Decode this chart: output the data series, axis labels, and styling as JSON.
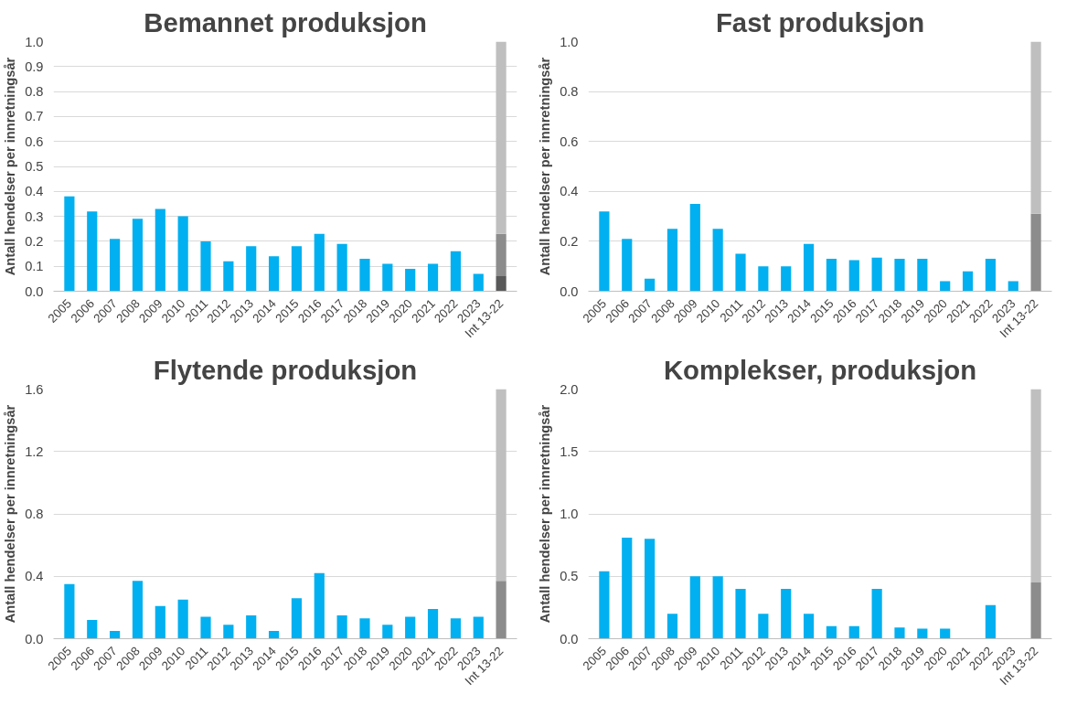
{
  "chart_data": [
    {
      "type": "bar",
      "title": "Bemannet produksjon",
      "ylabel": "Antall hendelser per innretningsår",
      "stacked": true,
      "grid": "y",
      "categories": [
        "2005",
        "2006",
        "2007",
        "2008",
        "2009",
        "2010",
        "2011",
        "2012",
        "2013",
        "2014",
        "2015",
        "2016",
        "2017",
        "2018",
        "2019",
        "2020",
        "2021",
        "2022",
        "2023",
        "Int 13-22"
      ],
      "ylim": [
        0,
        1.0
      ],
      "yticks": [
        {
          "value": 0,
          "label": "0.0"
        },
        0.1,
        0.2,
        0.3,
        0.4,
        0.5,
        0.6,
        0.7,
        0.8,
        0.9,
        {
          "value": 1,
          "label": "1.0"
        }
      ],
      "series": [
        {
          "color": "#00b0f0",
          "values": [
            0.38,
            0.32,
            0.21,
            0.29,
            0.33,
            0.3,
            0.2,
            0.12,
            0.18,
            0.14,
            0.18,
            0.23,
            0.19,
            0.13,
            0.11,
            0.09,
            0.11,
            0.16,
            0.07,
            null
          ]
        },
        {
          "color": "#595959",
          "values": [
            null,
            null,
            null,
            null,
            null,
            null,
            null,
            null,
            null,
            null,
            null,
            null,
            null,
            null,
            null,
            null,
            null,
            null,
            null,
            0.06
          ]
        },
        {
          "color": "#8c8c8c",
          "values": [
            null,
            null,
            null,
            null,
            null,
            null,
            null,
            null,
            null,
            null,
            null,
            null,
            null,
            null,
            null,
            null,
            null,
            null,
            null,
            0.17
          ]
        },
        {
          "color": "#bfbfbf",
          "values": [
            null,
            null,
            null,
            null,
            null,
            null,
            null,
            null,
            null,
            null,
            null,
            null,
            null,
            null,
            null,
            null,
            null,
            null,
            null,
            0.77
          ]
        }
      ]
    },
    {
      "type": "bar",
      "title": "Fast produksjon",
      "ylabel": "Antall hendelser per innretningsår",
      "stacked": true,
      "grid": "y",
      "categories": [
        "2005",
        "2006",
        "2007",
        "2008",
        "2009",
        "2010",
        "2011",
        "2012",
        "2013",
        "2014",
        "2015",
        "2016",
        "2017",
        "2018",
        "2019",
        "2020",
        "2021",
        "2022",
        "2023",
        "Int 13-22"
      ],
      "ylim": [
        0,
        1.0
      ],
      "yticks": [
        {
          "value": 0,
          "label": "0.0"
        },
        0.2,
        0.4,
        0.6,
        0.8,
        {
          "value": 1,
          "label": "1.0"
        }
      ],
      "series": [
        {
          "color": "#00b0f0",
          "values": [
            0.32,
            0.21,
            0.05,
            0.25,
            0.35,
            0.25,
            0.15,
            0.1,
            0.1,
            0.19,
            0.13,
            0.125,
            0.135,
            0.13,
            0.13,
            0.04,
            0.08,
            0.13,
            0.04,
            null
          ]
        },
        {
          "color": "#8c8c8c",
          "values": [
            null,
            null,
            null,
            null,
            null,
            null,
            null,
            null,
            null,
            null,
            null,
            null,
            null,
            null,
            null,
            null,
            null,
            null,
            null,
            0.31
          ]
        },
        {
          "color": "#bfbfbf",
          "values": [
            null,
            null,
            null,
            null,
            null,
            null,
            null,
            null,
            null,
            null,
            null,
            null,
            null,
            null,
            null,
            null,
            null,
            null,
            null,
            0.69
          ]
        }
      ]
    },
    {
      "type": "bar",
      "title": "Flytende produksjon",
      "ylabel": "Antall hendelser per innretningsår",
      "stacked": true,
      "grid": "y",
      "categories": [
        "2005",
        "2006",
        "2007",
        "2008",
        "2009",
        "2010",
        "2011",
        "2012",
        "2013",
        "2014",
        "2015",
        "2016",
        "2017",
        "2018",
        "2019",
        "2020",
        "2021",
        "2022",
        "2023",
        "Int 13-22"
      ],
      "ylim": [
        0,
        1.6
      ],
      "yticks": [
        {
          "value": 0,
          "label": "0.0"
        },
        0.4,
        0.8,
        1.2,
        1.6
      ],
      "series": [
        {
          "color": "#00b0f0",
          "values": [
            0.35,
            0.12,
            0.05,
            0.37,
            0.21,
            0.25,
            0.14,
            0.09,
            0.15,
            0.05,
            0.26,
            0.42,
            0.15,
            0.13,
            0.09,
            0.14,
            0.19,
            0.13,
            0.14,
            null
          ]
        },
        {
          "color": "#8c8c8c",
          "values": [
            null,
            null,
            null,
            null,
            null,
            null,
            null,
            null,
            null,
            null,
            null,
            null,
            null,
            null,
            null,
            null,
            null,
            null,
            null,
            0.37
          ]
        },
        {
          "color": "#bfbfbf",
          "values": [
            null,
            null,
            null,
            null,
            null,
            null,
            null,
            null,
            null,
            null,
            null,
            null,
            null,
            null,
            null,
            null,
            null,
            null,
            null,
            1.23
          ]
        }
      ]
    },
    {
      "type": "bar",
      "title": "Komplekser, produksjon",
      "ylabel": "Antall hendelser per innretningsår",
      "stacked": true,
      "grid": "y",
      "categories": [
        "2005",
        "2006",
        "2007",
        "2008",
        "2009",
        "2010",
        "2011",
        "2012",
        "2013",
        "2014",
        "2015",
        "2016",
        "2017",
        "2018",
        "2019",
        "2020",
        "2021",
        "2022",
        "2023",
        "Int 13-22"
      ],
      "ylim": [
        0,
        2.0
      ],
      "yticks": [
        {
          "value": 0,
          "label": "0.0"
        },
        0.5,
        {
          "value": 1,
          "label": "1.0"
        },
        1.5,
        {
          "value": 2,
          "label": "2.0"
        }
      ],
      "series": [
        {
          "color": "#00b0f0",
          "values": [
            0.54,
            0.81,
            0.8,
            0.2,
            0.5,
            0.5,
            0.4,
            0.2,
            0.4,
            0.2,
            0.1,
            0.1,
            0.4,
            0.09,
            0.08,
            0.08,
            null,
            0.27,
            null,
            null
          ]
        },
        {
          "color": "#8c8c8c",
          "values": [
            null,
            null,
            null,
            null,
            null,
            null,
            null,
            null,
            null,
            null,
            null,
            null,
            null,
            null,
            null,
            null,
            null,
            null,
            null,
            0.45
          ]
        },
        {
          "color": "#bfbfbf",
          "values": [
            null,
            null,
            null,
            null,
            null,
            null,
            null,
            null,
            null,
            null,
            null,
            null,
            null,
            null,
            null,
            null,
            null,
            null,
            null,
            1.55
          ]
        }
      ]
    }
  ]
}
